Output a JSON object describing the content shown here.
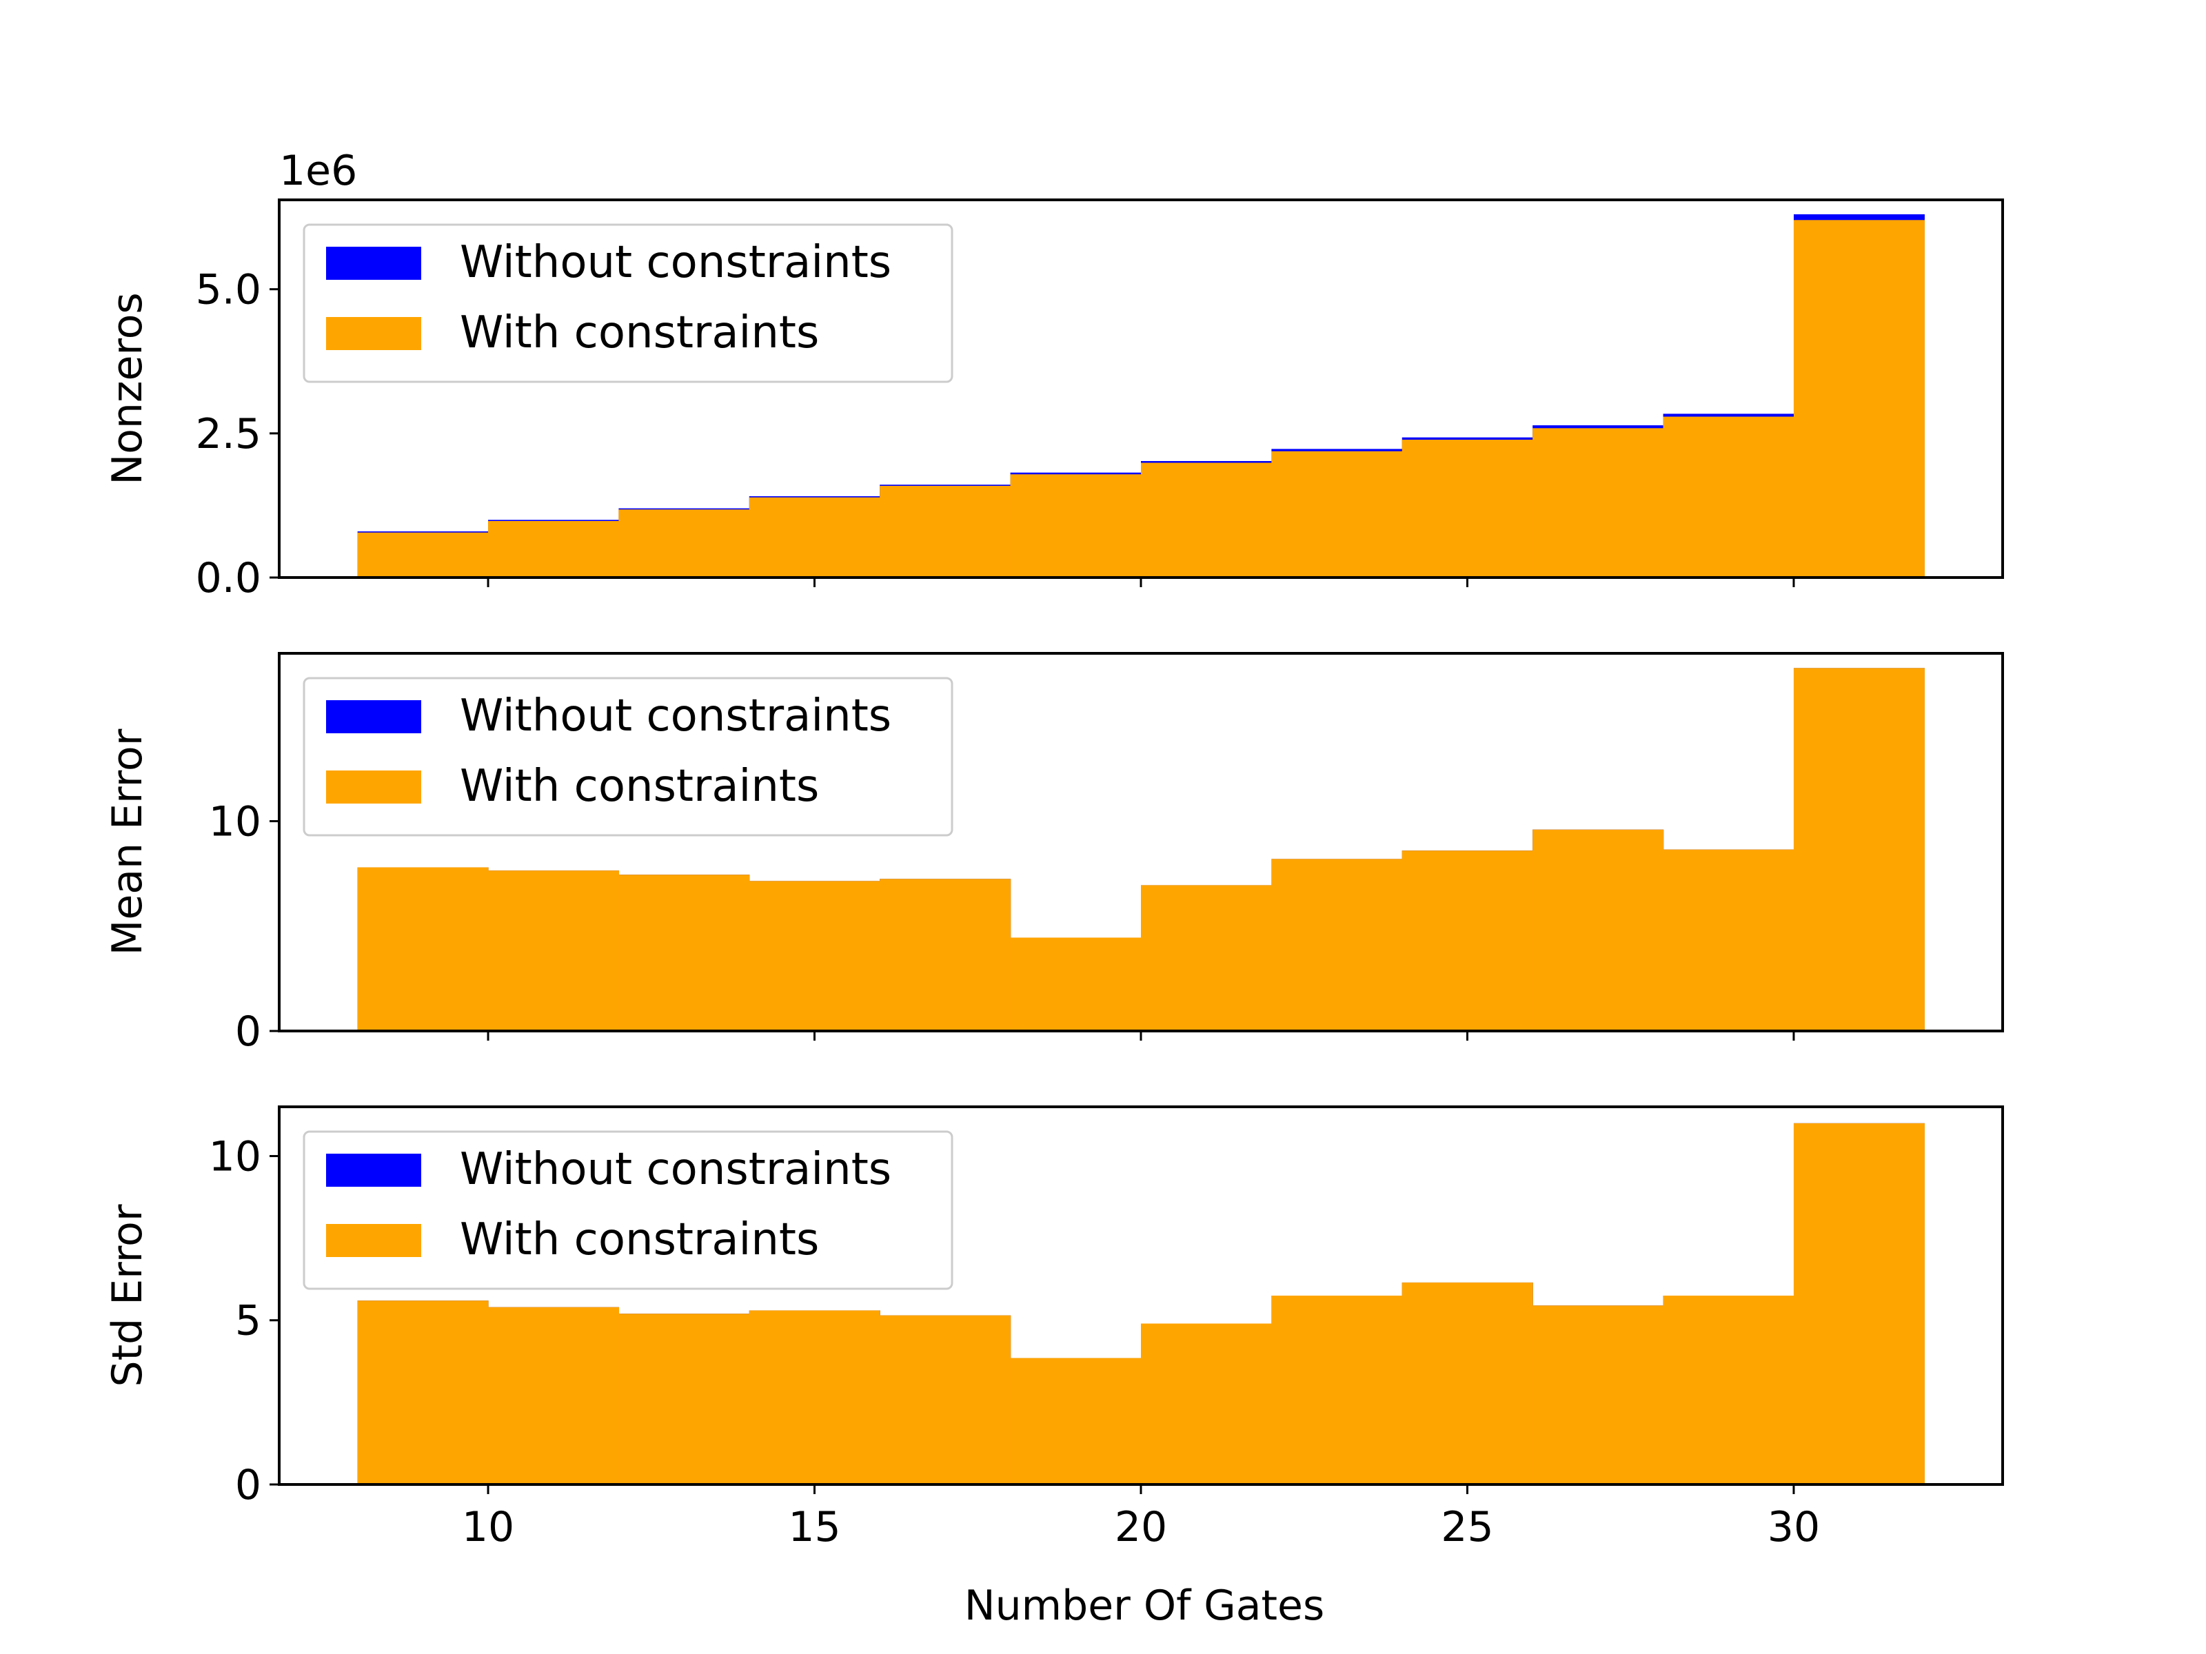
{
  "chart_data": {
    "type": "bar",
    "subtype": "step-histogram",
    "shared_x": true,
    "xlabel": "Number Of Gates",
    "xlim": [
      6.8,
      33.2
    ],
    "x_ticks": [
      10,
      15,
      20,
      25,
      30
    ],
    "x_tick_labels": [
      "10",
      "15",
      "20",
      "25",
      "30"
    ],
    "bin_edges": [
      8,
      10,
      12,
      14,
      16,
      18,
      20,
      22,
      24,
      26,
      28,
      30,
      32
    ],
    "colors": {
      "Without constraints": "#0000ff",
      "With constraints": "#ffa500"
    },
    "legend_position": "upper-left",
    "panels": [
      {
        "ylabel": "Nonzeros",
        "scale_label": "1e6",
        "ylim": [
          0,
          6.55
        ],
        "y_ticks": [
          0,
          2.5,
          5
        ],
        "y_tick_labels": [
          "0.0",
          "2.5",
          "5.0"
        ],
        "legend": [
          "Without constraints",
          "With constraints"
        ],
        "series": [
          {
            "name": "Without constraints",
            "values": [
              0.8,
              1.0,
              1.2,
              1.41,
              1.61,
              1.82,
              2.02,
              2.23,
              2.43,
              2.64,
              2.84,
              6.3
            ]
          },
          {
            "name": "With constraints",
            "values": [
              0.78,
              0.98,
              1.18,
              1.39,
              1.59,
              1.79,
              1.99,
              2.19,
              2.39,
              2.59,
              2.79,
              6.2
            ]
          }
        ]
      },
      {
        "ylabel": "Mean Error",
        "ylim": [
          0,
          18
        ],
        "y_ticks": [
          0,
          10
        ],
        "y_tick_labels": [
          "0",
          "10"
        ],
        "legend": [
          "Without constraints",
          "With constraints"
        ],
        "series": [
          {
            "name": "Without constraints",
            "values": [
              7.8,
              7.65,
              7.45,
              7.15,
              7.25,
              4.45,
              6.95,
              8.2,
              8.6,
              9.6,
              8.65,
              17.3
            ]
          },
          {
            "name": "With constraints",
            "values": [
              7.8,
              7.65,
              7.45,
              7.15,
              7.25,
              4.45,
              6.95,
              8.2,
              8.6,
              9.6,
              8.65,
              17.3
            ]
          }
        ]
      },
      {
        "ylabel": "Std Error",
        "ylim": [
          0,
          11.5
        ],
        "y_ticks": [
          0,
          5,
          10
        ],
        "y_tick_labels": [
          "0",
          "5",
          "10"
        ],
        "legend": [
          "Without constraints",
          "With constraints"
        ],
        "series": [
          {
            "name": "Without constraints",
            "values": [
              5.6,
              5.4,
              5.2,
              5.3,
              5.15,
              3.85,
              4.9,
              5.75,
              6.15,
              5.45,
              5.75,
              11.0
            ]
          },
          {
            "name": "With constraints",
            "values": [
              5.6,
              5.4,
              5.2,
              5.3,
              5.15,
              3.85,
              4.9,
              5.75,
              6.15,
              5.45,
              5.75,
              11.0
            ]
          }
        ]
      }
    ]
  }
}
